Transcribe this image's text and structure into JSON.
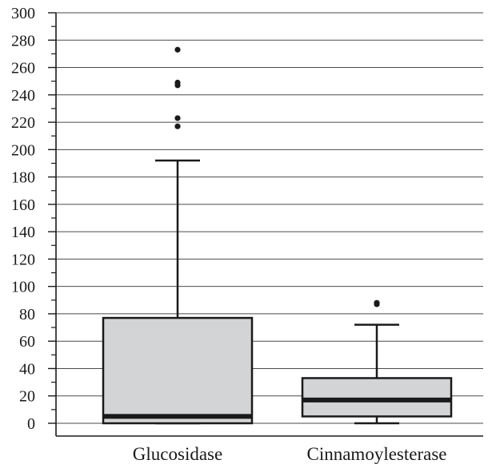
{
  "chart_data": {
    "type": "boxplot",
    "title": "",
    "xlabel": "",
    "ylabel": "",
    "ylim": [
      0,
      300
    ],
    "y_tick_labels": [
      "0",
      "20",
      "40",
      "60",
      "80",
      "100",
      "120",
      "140",
      "160",
      "180",
      "200",
      "220",
      "240",
      "260",
      "280",
      "300"
    ],
    "minor_tick_step": 10,
    "grid": "horizontal",
    "colors": {
      "box_fill": "#d3d4d6",
      "stroke": "#1a1a1a",
      "grid": "#4a4a4a"
    },
    "categories": [
      "Glucosidase",
      "Cinnamoylesterase"
    ],
    "boxes": [
      {
        "name": "Glucosidase",
        "whisker_low": 0,
        "q1": 0,
        "median": 5,
        "q3": 77,
        "whisker_high": 192,
        "outliers": [
          217,
          223,
          247,
          249,
          273
        ]
      },
      {
        "name": "Cinnamoylesterase",
        "whisker_low": 0,
        "q1": 5,
        "median": 17,
        "q3": 33,
        "whisker_high": 72,
        "outliers": [
          87,
          88
        ]
      }
    ]
  }
}
